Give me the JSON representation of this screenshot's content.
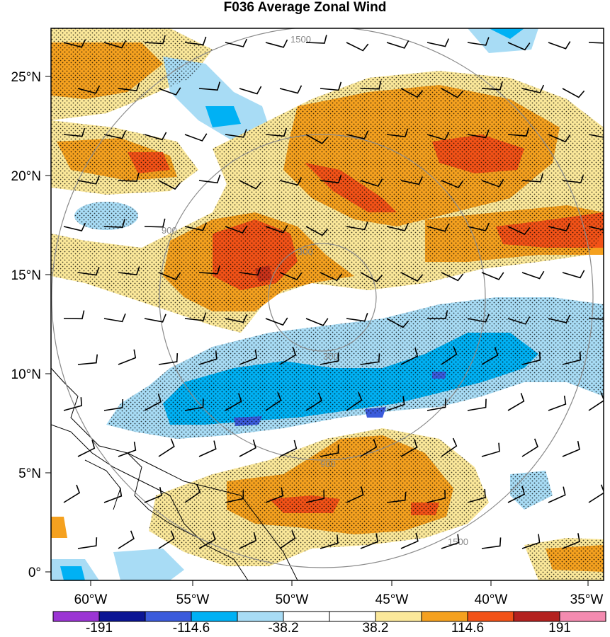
{
  "title": "F036 Average Zonal Wind",
  "axes": {
    "lat_labels": [
      "25°N",
      "20°N",
      "15°N",
      "10°N",
      "5°N",
      "0°"
    ],
    "lon_labels": [
      "60°W",
      "55°W",
      "50°W",
      "45°W",
      "40°W",
      "35°W"
    ]
  },
  "colorbar": {
    "colors": [
      "#9b35d4",
      "#0b1594",
      "#3b5bdb",
      "#00b1f4",
      "#a8dcf5",
      "#ffffff",
      "#ffffff",
      "#fbe89a",
      "#f5a11f",
      "#f25217",
      "#b4211f",
      "#f48bb0"
    ],
    "labels": [
      "-191",
      "-114.6",
      "-38.2",
      "38.2",
      "114.6",
      "191"
    ]
  },
  "range_rings": [
    {
      "label": "300"
    },
    {
      "label": "900"
    },
    {
      "label": "1500"
    }
  ],
  "colors": {
    "light_blue": "#a8dcf5",
    "blue": "#00b1f4",
    "dark_blue": "#3b5bdb",
    "yellow": "#fbe89a",
    "orange": "#f5a11f",
    "red_orange": "#f25217",
    "dark_red": "#c8321a",
    "ring": "#8a8a8a"
  }
}
